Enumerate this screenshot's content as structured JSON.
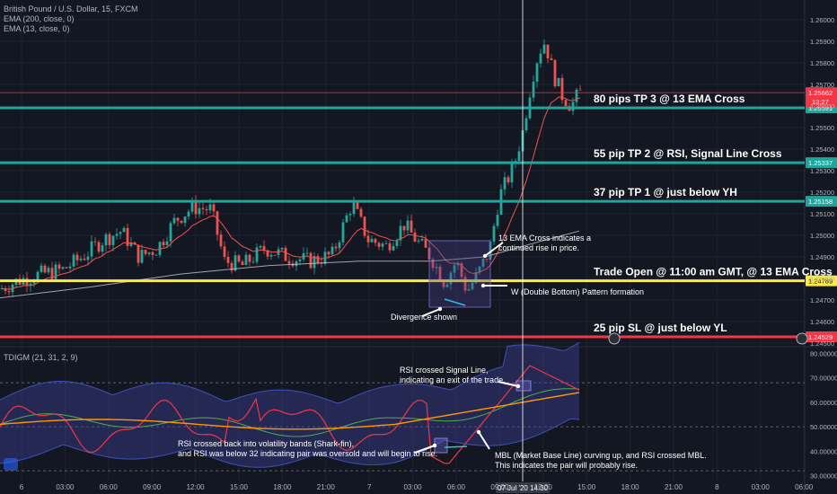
{
  "header": {
    "symbol": "British Pound / U.S. Dollar, 15, FXCM",
    "ema200": "EMA (200, close, 0)",
    "ema13": "EMA (13, close, 0)",
    "indicator": "TDIGM (21, 31, 2, 9)"
  },
  "colors": {
    "background": "#131722",
    "up": "#26a69a",
    "down": "#ef5350",
    "teal_line": "#1fa59a",
    "yellow_line": "#ffeb3b",
    "red_line": "#f23645",
    "ema13": "#ef5350",
    "ema200": "#d1d4dc"
  },
  "chart_data": [
    {
      "type": "candlestick",
      "ylim": [
        1.245,
        1.2605
      ],
      "y_ticks": [
        "1.26000",
        "1.25900",
        "1.25800",
        "1.25700",
        "1.25600",
        "1.25500",
        "1.25400",
        "1.25300",
        "1.25200",
        "1.25100",
        "1.25000",
        "1.24900",
        "1.24800",
        "1.24700",
        "1.24600",
        "1.24500"
      ],
      "x_ticks": [
        "6",
        "03:00",
        "06:00",
        "09:00",
        "12:00",
        "15:00",
        "18:00",
        "21:00",
        "7",
        "03:00",
        "06:00",
        "09:00",
        "12:00",
        "15:00",
        "18:00",
        "21:00",
        "8",
        "03:00",
        "06:00",
        "09:00"
      ],
      "cursor_time": "07 Jul '20  14:30",
      "levels": [
        {
          "label": "80 pips TP 3 @ 13 EMA Cross",
          "price": 1.25591,
          "tag": "1.25591",
          "color": "#1fa59a"
        },
        {
          "label": "55 pip TP 2 @ RSI, Signal Line Cross",
          "price": 1.25337,
          "tag": "1.25337",
          "color": "#1fa59a"
        },
        {
          "label": "37 pip TP 1 @ just below YH",
          "price": 1.25158,
          "tag": "1.25158",
          "color": "#1fa59a"
        },
        {
          "label": "Trade Open @ 11:00 am GMT, @ 13 EMA Cross",
          "price": 1.24789,
          "tag": "1.24789",
          "color": "#ffeb3b"
        },
        {
          "label": "25 pip SL @ just below YL",
          "price": 1.24529,
          "tag": "1.24529",
          "color": "#f23645"
        }
      ],
      "current_price": {
        "price": 1.25662,
        "tag": "1.25662",
        "countdown": "13:27"
      },
      "annotations": [
        {
          "line1": "13 EMA Cross indicates a",
          "line2": "continued rise in price."
        },
        {
          "line1": "W (Double Bottom) Pattern formation",
          "line2": ""
        },
        {
          "line1": "Divergence shown",
          "line2": ""
        }
      ]
    },
    {
      "type": "line",
      "ylim": [
        28,
        82
      ],
      "y_ticks": [
        "80.00000",
        "70.00000",
        "60.00000",
        "50.00000",
        "40.00000",
        "30.00000"
      ],
      "dashed_levels": [
        68,
        50,
        32
      ],
      "annotations": [
        {
          "line1": "RSI crossed Signal Line,",
          "line2": "indicating an exit of the trade."
        },
        {
          "line1": "RSI crossed back into volatility bands (Shark-fin),",
          "line2": "and RSI was below 32 indicating pair was oversold and will begin to rise."
        },
        {
          "line1": "MBL (Market Base Line) curving up, and RSI crossed MBL.",
          "line2": "This indicates the pair will probably rise."
        }
      ]
    }
  ]
}
